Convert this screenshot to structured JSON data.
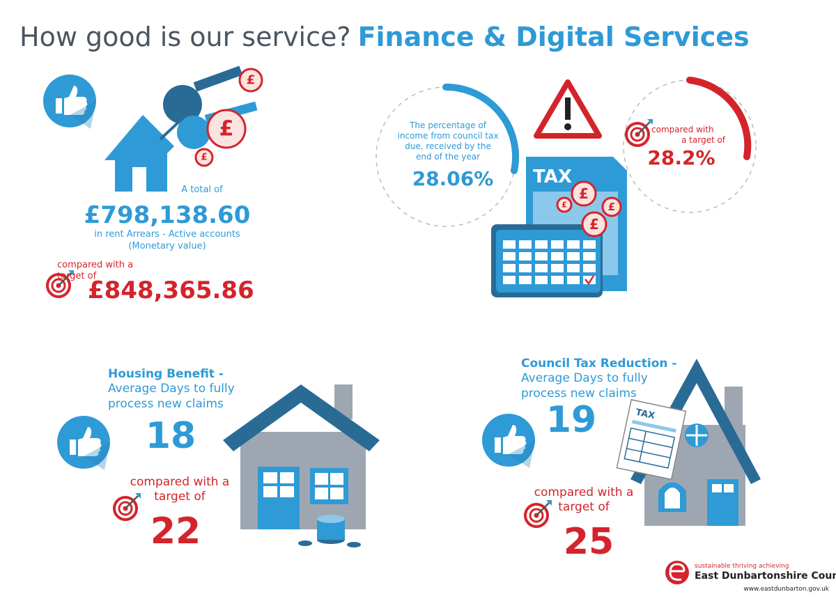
{
  "header": {
    "title_lead": "How good is our service?",
    "title_service": "Finance & Digital Services"
  },
  "coin_symbol": "£",
  "rent_arrears": {
    "intro": "A total of",
    "value": "£798,138.60",
    "description_lines": [
      "in rent Arrears - Active accounts",
      "(Monetary value)"
    ],
    "comparison_lines": [
      "compared with a",
      "target of"
    ],
    "target": "£848,365.86"
  },
  "council_tax_collection": {
    "description_lines": [
      "The percentage of",
      "income from council tax",
      "due, received by the",
      "end of the year"
    ],
    "value": "28.06%",
    "comparison_lines": [
      "compared with",
      "a target of"
    ],
    "target": "28.2%",
    "document_label": "TAX"
  },
  "housing_benefit": {
    "title": "Housing Benefit -",
    "subtitle_lines": [
      "Average Days to fully",
      "process new claims"
    ],
    "value": "18",
    "comparison_lines": [
      "compared with a",
      "target of"
    ],
    "target": "22"
  },
  "council_tax_reduction": {
    "title": "Council Tax Reduction -",
    "subtitle_lines": [
      "Average Days to fully",
      "process new claims"
    ],
    "value": "19",
    "comparison_lines": [
      "compared with a",
      "target of"
    ],
    "target": "25",
    "form_label": "TAX"
  },
  "footer": {
    "tagline": "sustainable thriving achieving",
    "organisation": "East Dunbartonshire Council",
    "website": "www.eastdunbarton.gov.uk"
  }
}
